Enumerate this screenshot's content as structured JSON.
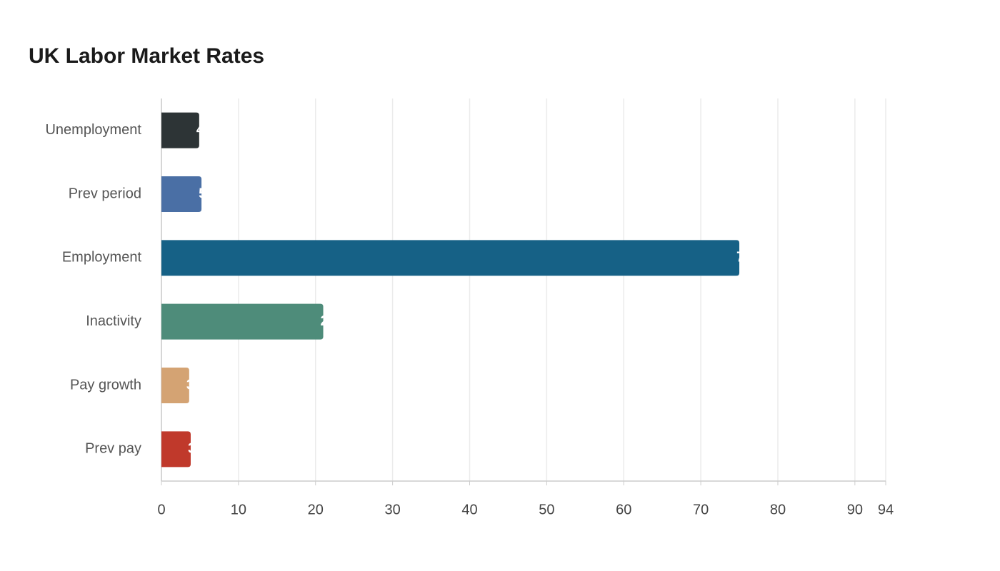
{
  "chart_data": {
    "type": "bar",
    "orientation": "horizontal",
    "title": "UK Labor Market Rates",
    "categories": [
      "Unemployment",
      "Prev period",
      "Employment",
      "Inactivity",
      "Pay growth",
      "Prev pay"
    ],
    "values": [
      4.9,
      5.2,
      75.0,
      21.0,
      3.6,
      3.8
    ],
    "colors": [
      "#2d3436",
      "#4a6fa5",
      "#166186",
      "#4e8c7a",
      "#d4a373",
      "#c0392b"
    ],
    "xlim": [
      0,
      94
    ],
    "xticks": [
      0,
      10,
      20,
      30,
      40,
      50,
      60,
      70,
      80,
      90,
      94
    ],
    "grid": true
  }
}
